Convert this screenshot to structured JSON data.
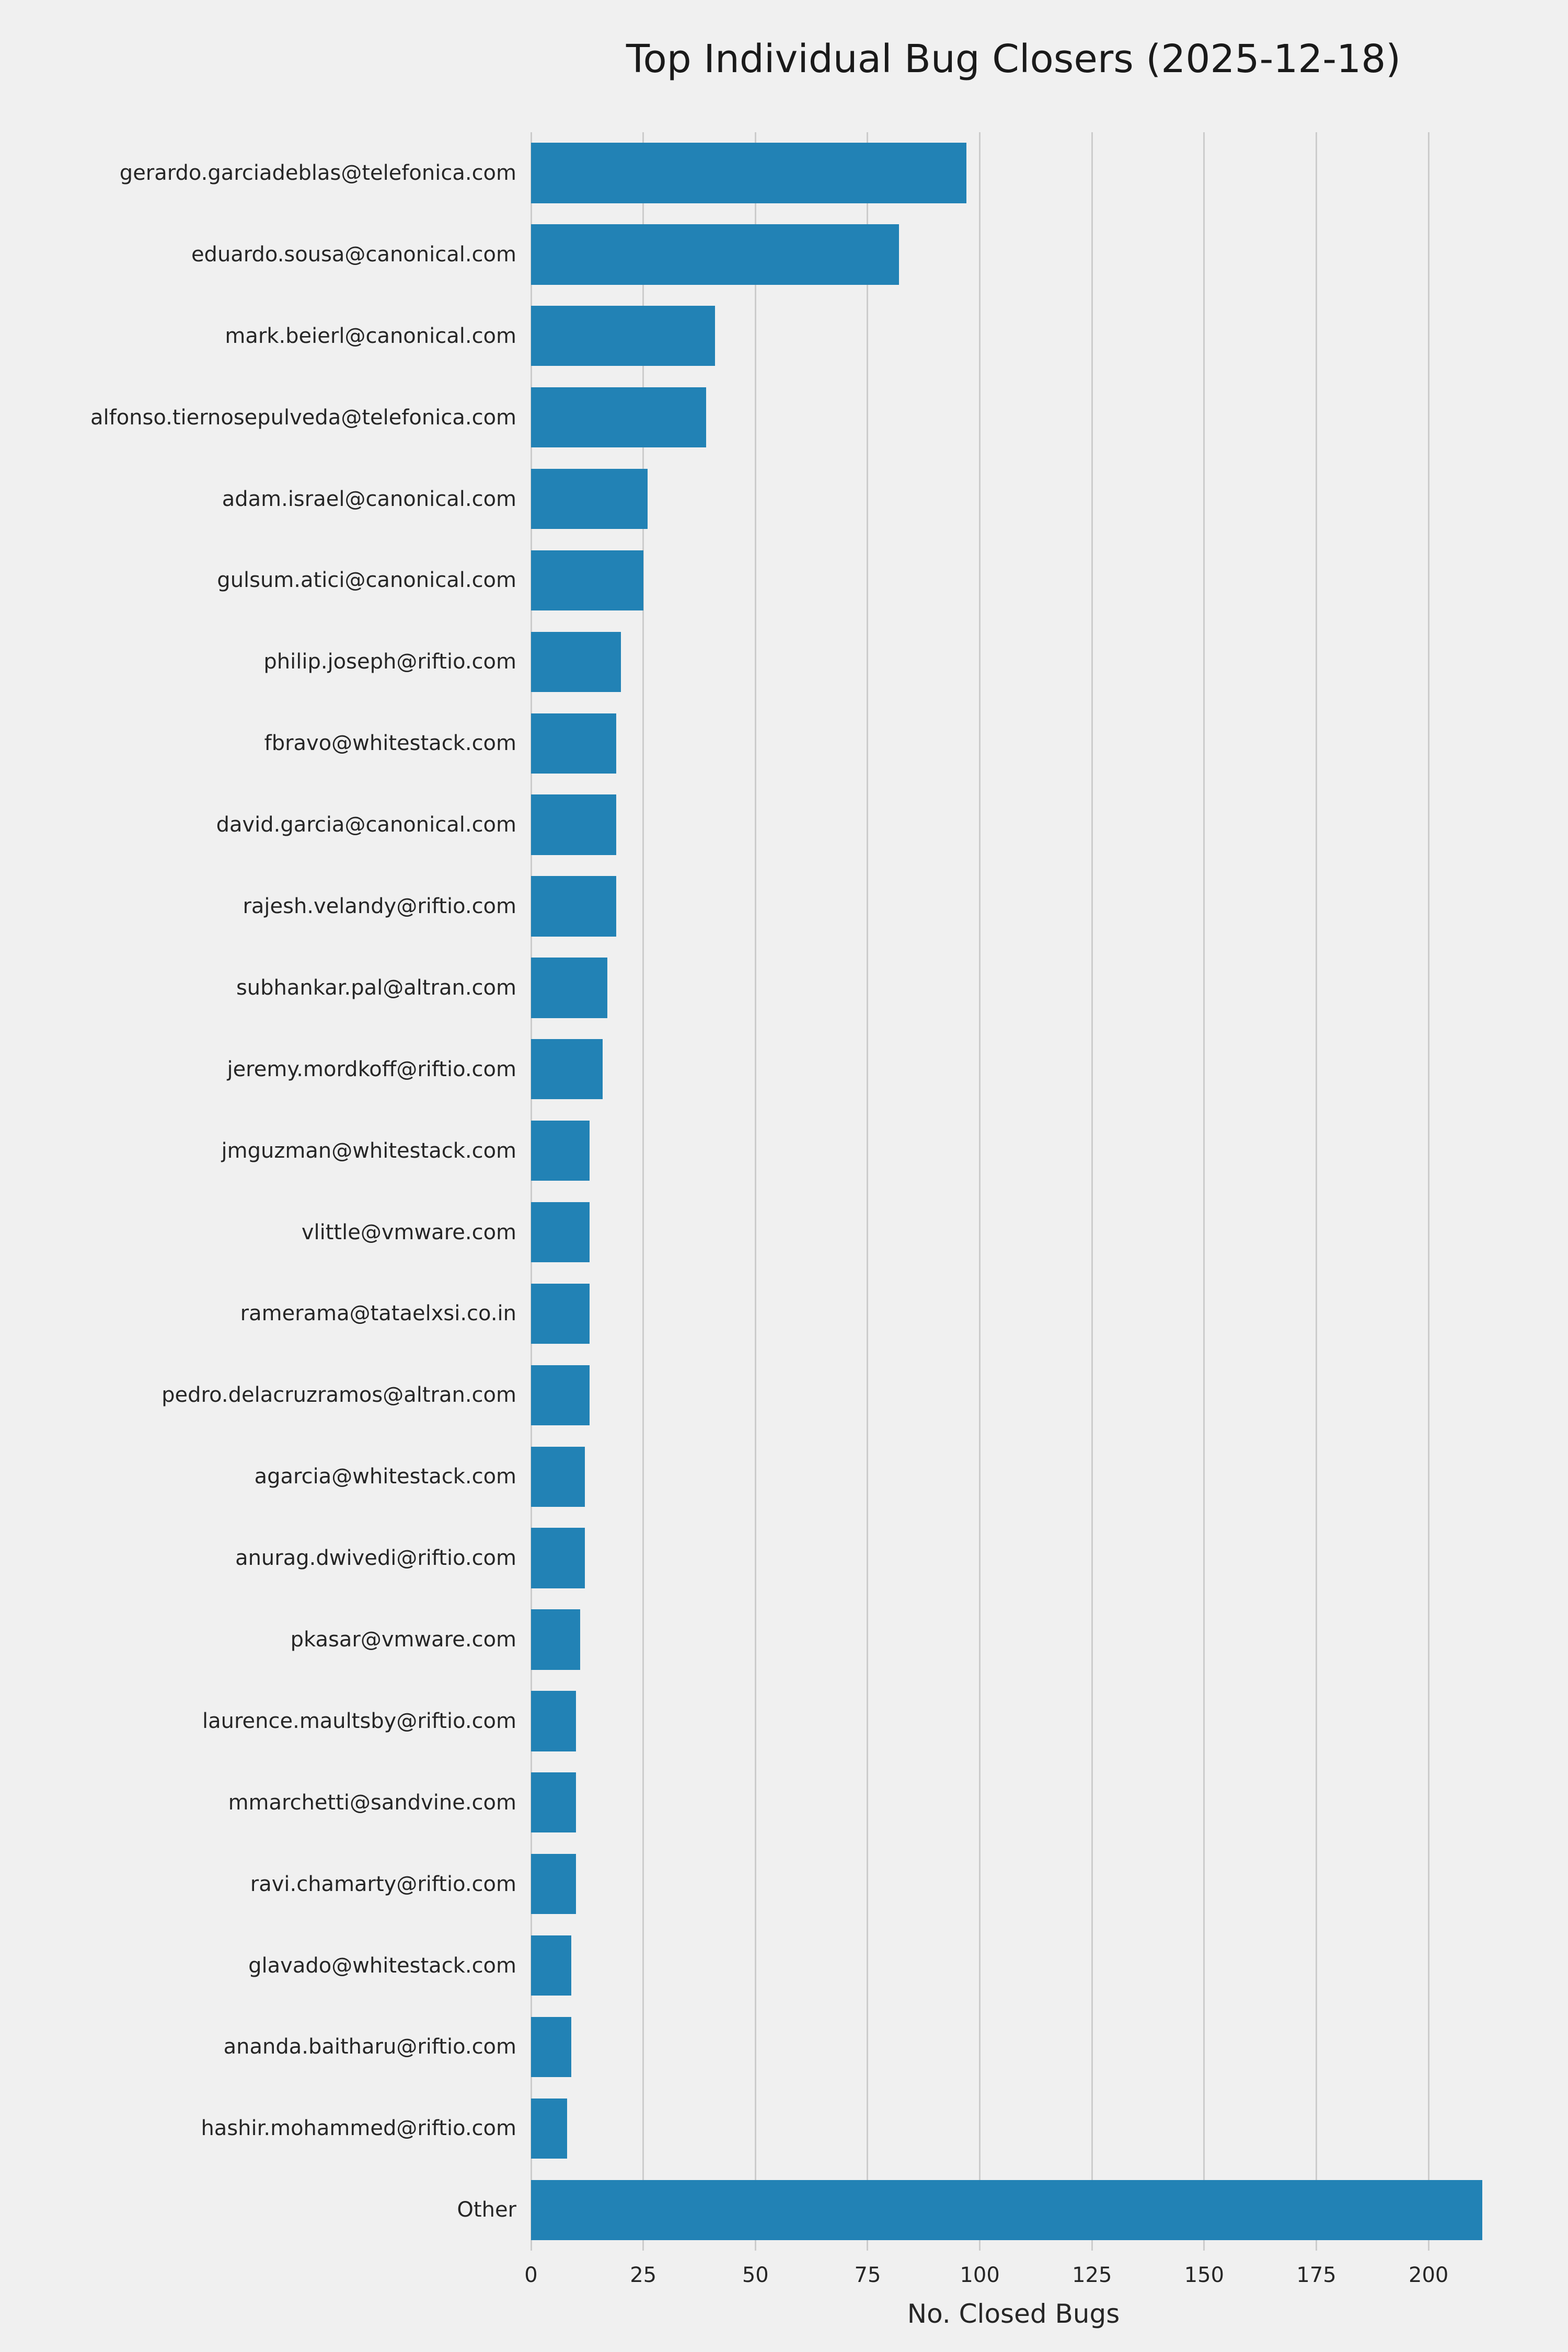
{
  "chart_data": {
    "type": "bar",
    "orientation": "horizontal",
    "title": "Top Individual Bug Closers (2025-12-18)",
    "xlabel": "No. Closed Bugs",
    "ylabel": "",
    "xlim": [
      0,
      215
    ],
    "xticks": [
      0,
      25,
      50,
      75,
      100,
      125,
      150,
      175,
      200
    ],
    "grid": "vertical-gridlines-only",
    "legend": "none",
    "categories": [
      "gerardo.garciadeblas@telefonica.com",
      "eduardo.sousa@canonical.com",
      "mark.beierl@canonical.com",
      "alfonso.tiernosepulveda@telefonica.com",
      "adam.israel@canonical.com",
      "gulsum.atici@canonical.com",
      "philip.joseph@riftio.com",
      "fbravo@whitestack.com",
      "david.garcia@canonical.com",
      "rajesh.velandy@riftio.com",
      "subhankar.pal@altran.com",
      "jeremy.mordkoff@riftio.com",
      "jmguzman@whitestack.com",
      "vlittle@vmware.com",
      "ramerama@tataelxsi.co.in",
      "pedro.delacruzramos@altran.com",
      "agarcia@whitestack.com",
      "anurag.dwivedi@riftio.com",
      "pkasar@vmware.com",
      "laurence.maultsby@riftio.com",
      "mmarchetti@sandvine.com",
      "ravi.chamarty@riftio.com",
      "glavado@whitestack.com",
      "ananda.baitharu@riftio.com",
      "hashir.mohammed@riftio.com",
      "Other"
    ],
    "values": [
      97,
      82,
      41,
      39,
      26,
      25,
      20,
      19,
      19,
      19,
      17,
      16,
      13,
      13,
      13,
      13,
      12,
      12,
      11,
      10,
      10,
      10,
      9,
      9,
      8,
      212
    ]
  },
  "colors": {
    "background": "#f0f0f0",
    "bar": "#2282b5",
    "gridline": "#cccccc",
    "text": "#262626"
  }
}
